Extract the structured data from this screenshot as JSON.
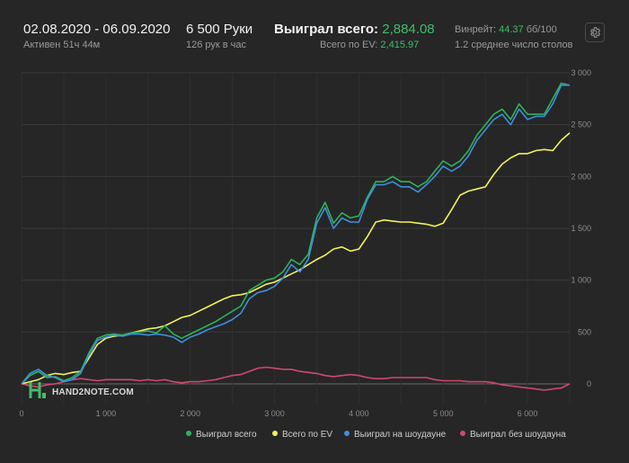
{
  "header": {
    "date_range": "02.08.2020 - 06.09.2020",
    "active": "Активен 51ч 44м",
    "hands_count": "6 500 Руки",
    "hands_per_hour": "126 рук в час",
    "won_label": "Выиграл всего:",
    "won_value": "2,884.08",
    "ev_label": "Всего по EV:",
    "ev_value": "2,415.97",
    "winrate_label": "Винрейт:",
    "winrate_value": "44.37",
    "winrate_unit": "бб/100",
    "tables": "1.2 среднее число столов"
  },
  "logo": {
    "text": "HAND2NOTE.COM"
  },
  "colors": {
    "background": "#262626",
    "won": "#2db35a",
    "ev": "#f2f25a",
    "showdown": "#3e8fe0",
    "non_showdown": "#d0486e",
    "accent": "#3fbf6a"
  },
  "icons": {
    "settings": "gear-icon"
  },
  "chart_data": {
    "type": "line",
    "xlim": [
      0,
      6500
    ],
    "ylim": [
      -200,
      3000
    ],
    "x_ticks": [
      0,
      1000,
      2000,
      3000,
      4000,
      5000,
      6000
    ],
    "x_tick_labels": [
      "0",
      "1 000",
      "2 000",
      "3 000",
      "4 000",
      "5 000",
      "6 000"
    ],
    "y_ticks": [
      0,
      500,
      1000,
      1500,
      2000,
      2500,
      3000
    ],
    "y_tick_labels": [
      "0",
      "500",
      "1 000",
      "1 500",
      "2 000",
      "2 500",
      "3 000"
    ],
    "grid": true,
    "legend_position": "bottom",
    "x": [
      0,
      100,
      200,
      300,
      400,
      500,
      600,
      700,
      800,
      900,
      1000,
      1100,
      1200,
      1300,
      1400,
      1500,
      1600,
      1700,
      1800,
      1900,
      2000,
      2100,
      2200,
      2300,
      2400,
      2500,
      2600,
      2700,
      2800,
      2900,
      3000,
      3100,
      3200,
      3300,
      3400,
      3500,
      3600,
      3700,
      3800,
      3900,
      4000,
      4100,
      4200,
      4300,
      4400,
      4500,
      4600,
      4700,
      4800,
      4900,
      5000,
      5100,
      5200,
      5300,
      5400,
      5500,
      5600,
      5700,
      5800,
      5900,
      6000,
      6100,
      6200,
      6300,
      6400,
      6500
    ],
    "series": [
      {
        "name": "Выиграл всего",
        "color": "#2db35a",
        "values": [
          0,
          80,
          120,
          60,
          70,
          30,
          60,
          120,
          300,
          440,
          470,
          480,
          470,
          490,
          500,
          510,
          490,
          560,
          480,
          440,
          480,
          520,
          560,
          600,
          650,
          700,
          750,
          900,
          950,
          1000,
          1020,
          1080,
          1200,
          1150,
          1250,
          1600,
          1750,
          1550,
          1650,
          1600,
          1620,
          1800,
          1950,
          1950,
          2000,
          1950,
          1950,
          1900,
          1950,
          2050,
          2150,
          2100,
          2150,
          2250,
          2400,
          2500,
          2600,
          2650,
          2550,
          2700,
          2600,
          2600,
          2600,
          2750,
          2900,
          2880
        ]
      },
      {
        "name": "Всего по EV",
        "color": "#f2f25a",
        "values": [
          0,
          20,
          40,
          80,
          100,
          90,
          110,
          120,
          250,
          380,
          440,
          460,
          470,
          490,
          510,
          530,
          540,
          560,
          600,
          640,
          660,
          700,
          740,
          780,
          820,
          850,
          860,
          880,
          920,
          960,
          980,
          1020,
          1060,
          1100,
          1150,
          1200,
          1240,
          1300,
          1320,
          1280,
          1300,
          1420,
          1560,
          1580,
          1570,
          1560,
          1560,
          1550,
          1540,
          1520,
          1550,
          1680,
          1820,
          1860,
          1880,
          1900,
          2020,
          2120,
          2180,
          2220,
          2220,
          2250,
          2260,
          2250,
          2350,
          2420
        ]
      },
      {
        "name": "Выиграл на шоудауне",
        "color": "#3e8fe0",
        "values": [
          0,
          100,
          140,
          80,
          60,
          20,
          40,
          100,
          280,
          420,
          450,
          470,
          460,
          480,
          480,
          470,
          480,
          470,
          450,
          400,
          450,
          480,
          520,
          550,
          580,
          620,
          680,
          820,
          880,
          900,
          940,
          1020,
          1150,
          1080,
          1200,
          1550,
          1700,
          1500,
          1600,
          1560,
          1560,
          1780,
          1920,
          1920,
          1950,
          1900,
          1900,
          1850,
          1920,
          2000,
          2100,
          2050,
          2100,
          2200,
          2350,
          2450,
          2550,
          2600,
          2500,
          2650,
          2550,
          2580,
          2580,
          2700,
          2880,
          2880
        ]
      },
      {
        "name": "Выиграл без шоудауна",
        "color": "#d0486e",
        "values": [
          0,
          -20,
          -30,
          -10,
          0,
          20,
          40,
          50,
          40,
          30,
          40,
          40,
          40,
          40,
          30,
          40,
          30,
          40,
          20,
          10,
          20,
          20,
          30,
          40,
          60,
          80,
          90,
          120,
          150,
          160,
          150,
          140,
          140,
          120,
          110,
          100,
          80,
          70,
          80,
          90,
          80,
          60,
          50,
          50,
          60,
          60,
          60,
          60,
          60,
          40,
          30,
          30,
          30,
          20,
          20,
          20,
          10,
          -10,
          -20,
          -30,
          -40,
          -50,
          -60,
          -50,
          -40,
          0
        ]
      }
    ]
  }
}
